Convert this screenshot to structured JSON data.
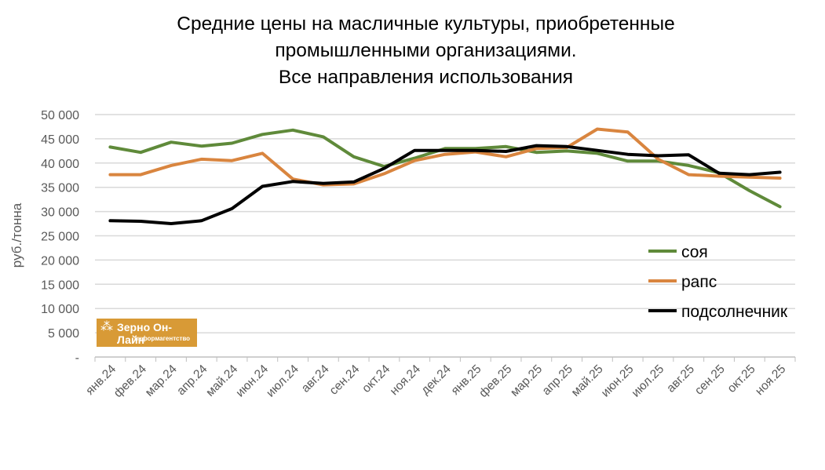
{
  "chart_data": {
    "type": "line",
    "title_lines": [
      "Средние цены на масличные культуры, приобретенные",
      "промышленными организациями.",
      "Все направления использования"
    ],
    "ylabel": "руб./тонна",
    "xlabel": "",
    "ylim": [
      0,
      50000
    ],
    "yticks": [
      0,
      5000,
      10000,
      15000,
      20000,
      25000,
      30000,
      35000,
      40000,
      45000,
      50000
    ],
    "ytick_labels": [
      "-",
      "5 000",
      "10 000",
      "15 000",
      "20 000",
      "25 000",
      "30 000",
      "35 000",
      "40 000",
      "45 000",
      "50 000"
    ],
    "grid": true,
    "legend_position": "right",
    "categories": [
      "янв.24",
      "фев.24",
      "мар.24",
      "апр.24",
      "май.24",
      "июн.24",
      "июл.24",
      "авг.24",
      "сен.24",
      "окт.24",
      "ноя.24",
      "дек.24",
      "янв.25",
      "фев.25",
      "мар.25",
      "апр.25",
      "май.25",
      "июн.25",
      "июл.25",
      "авг.25",
      "сен.25",
      "окт.25",
      "ноя.25"
    ],
    "series": [
      {
        "name": "соя",
        "color": "#5f8a3a",
        "values": [
          43300,
          42200,
          44300,
          43500,
          44100,
          45900,
          46800,
          45400,
          41300,
          39300,
          41000,
          43000,
          43000,
          43400,
          42200,
          42500,
          42000,
          40400,
          40400,
          39500,
          38000,
          34300,
          31000
        ]
      },
      {
        "name": "рапс",
        "color": "#d9853f",
        "values": [
          37600,
          37600,
          39500,
          40800,
          40500,
          42000,
          36700,
          35500,
          35700,
          37800,
          40500,
          41800,
          42300,
          41300,
          43000,
          43200,
          47000,
          46400,
          40800,
          37600,
          37300,
          37100,
          36900
        ]
      },
      {
        "name": "подсолнечник",
        "color": "#000000",
        "values": [
          28100,
          28000,
          27500,
          28100,
          30600,
          35200,
          36200,
          35800,
          36100,
          38900,
          42600,
          42600,
          42600,
          42400,
          43600,
          43400,
          42600,
          41800,
          41500,
          41700,
          37900,
          37600,
          38100
        ]
      }
    ]
  },
  "logo": {
    "name": "Зерно Он-Лайн",
    "subtitle": "информагентство"
  }
}
